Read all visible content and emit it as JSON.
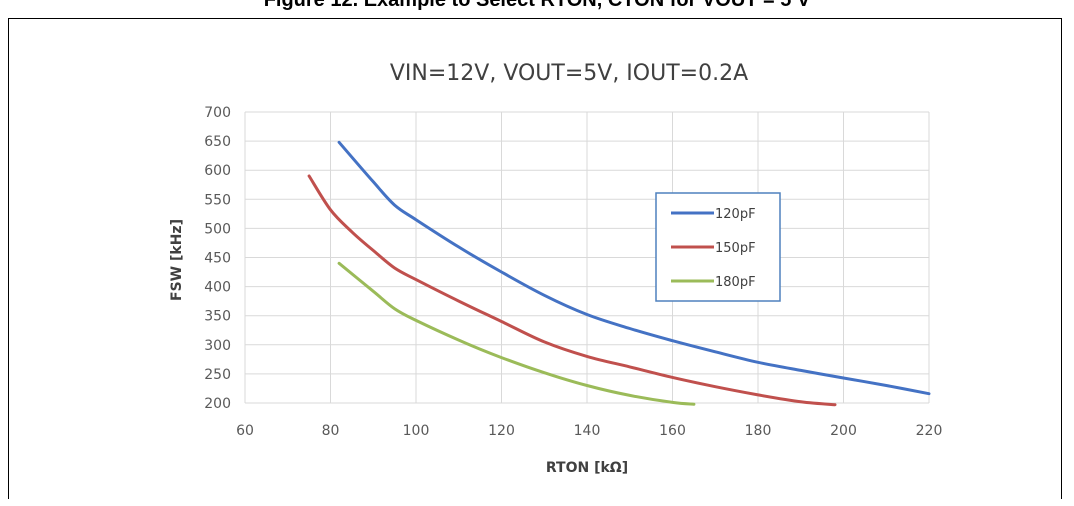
{
  "figure_caption": "Figure 12. Example to Select RTON, CTON for VOUT = 5 V",
  "chart_data": {
    "type": "line",
    "title": "VIN=12V, VOUT=5V, IOUT=0.2A",
    "xlabel": "RTON [kΩ]",
    "ylabel": "FSW [kHz]",
    "xlim": [
      60,
      220
    ],
    "ylim": [
      200,
      700
    ],
    "xticks": [
      60,
      80,
      100,
      120,
      140,
      160,
      180,
      200,
      220
    ],
    "yticks": [
      200,
      250,
      300,
      350,
      400,
      450,
      500,
      550,
      600,
      650,
      700
    ],
    "grid": true,
    "legend_position": "right",
    "series": [
      {
        "name": "120pF",
        "color": "#4472C4",
        "x": [
          82,
          90,
          95,
          100,
          110,
          120,
          130,
          140,
          150,
          160,
          170,
          180,
          190,
          200,
          210,
          220
        ],
        "y": [
          648,
          580,
          540,
          515,
          468,
          425,
          385,
          352,
          328,
          307,
          288,
          270,
          256,
          243,
          230,
          216
        ]
      },
      {
        "name": "150pF",
        "color": "#C0504D",
        "x": [
          75,
          80,
          85,
          90,
          95,
          100,
          110,
          120,
          130,
          140,
          150,
          160,
          170,
          180,
          190,
          198
        ],
        "y": [
          590,
          532,
          494,
          462,
          432,
          412,
          375,
          340,
          305,
          280,
          262,
          244,
          228,
          214,
          202,
          197
        ]
      },
      {
        "name": "180pF",
        "color": "#9BBB59",
        "x": [
          82,
          90,
          95,
          100,
          110,
          120,
          130,
          140,
          150,
          160,
          165
        ],
        "y": [
          440,
          392,
          362,
          342,
          308,
          278,
          252,
          230,
          213,
          201,
          198
        ]
      }
    ]
  }
}
